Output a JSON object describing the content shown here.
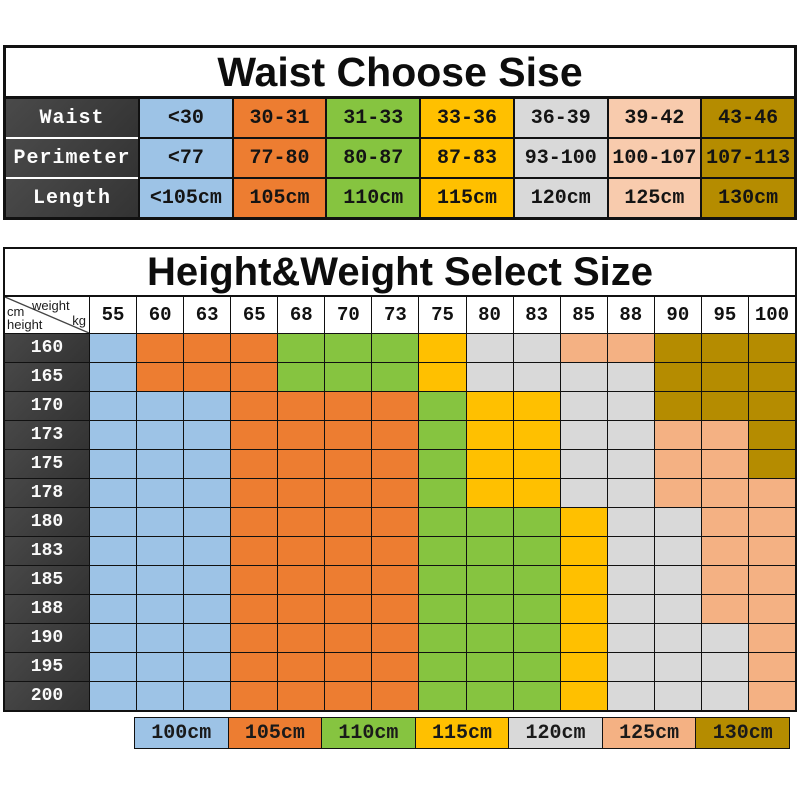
{
  "palette": {
    "blue": "#9DC3E6",
    "orange": "#ED7D31",
    "green": "#86C440",
    "yellow": "#FFC000",
    "gray": "#D9D9D9",
    "peach": "#F4B183",
    "peach_light": "#F8CBAD",
    "gold": "#B58C00",
    "dark_header": "#3D3D3D",
    "border": "#111111"
  },
  "waist_table": {
    "title": "Waist Choose Sise",
    "rows": [
      {
        "label": "Waist",
        "cells": [
          {
            "text": "<30",
            "color": "blue"
          },
          {
            "text": "30-31",
            "color": "orange"
          },
          {
            "text": "31-33",
            "color": "green"
          },
          {
            "text": "33-36",
            "color": "yellow"
          },
          {
            "text": "36-39",
            "color": "gray"
          },
          {
            "text": "39-42",
            "color": "peach_light"
          },
          {
            "text": "43-46",
            "color": "gold"
          }
        ]
      },
      {
        "label": "Perimeter",
        "cells": [
          {
            "text": "<77",
            "color": "blue"
          },
          {
            "text": "77-80",
            "color": "orange"
          },
          {
            "text": "80-87",
            "color": "green"
          },
          {
            "text": "87-83",
            "color": "yellow"
          },
          {
            "text": "93-100",
            "color": "gray"
          },
          {
            "text": "100-107",
            "color": "peach_light"
          },
          {
            "text": "107-113",
            "color": "gold"
          }
        ]
      },
      {
        "label": "Length",
        "cells": [
          {
            "text": "<105cm",
            "color": "blue"
          },
          {
            "text": "105cm",
            "color": "orange"
          },
          {
            "text": "110cm",
            "color": "green"
          },
          {
            "text": "115cm",
            "color": "yellow"
          },
          {
            "text": "120cm",
            "color": "gray"
          },
          {
            "text": "125cm",
            "color": "peach_light"
          },
          {
            "text": "130cm",
            "color": "gold"
          }
        ]
      }
    ]
  },
  "hw_table": {
    "title": "Height&Weight Select Size",
    "corner": {
      "top_label": "weight",
      "top_unit": "kg",
      "left_unit": "cm",
      "left_label": "height"
    },
    "weights": [
      "55",
      "60",
      "63",
      "65",
      "68",
      "70",
      "73",
      "75",
      "80",
      "83",
      "85",
      "88",
      "90",
      "95",
      "100"
    ],
    "heights": [
      "160",
      "165",
      "170",
      "173",
      "175",
      "178",
      "180",
      "183",
      "185",
      "188",
      "190",
      "195",
      "200"
    ],
    "code_map": {
      "B": "blue",
      "O": "orange",
      "G": "green",
      "Y": "yellow",
      "S": "gray",
      "P": "peach",
      "D": "gold"
    },
    "grid": [
      [
        "B",
        "O",
        "O",
        "O",
        "G",
        "G",
        "G",
        "Y",
        "S",
        "S",
        "P",
        "P",
        "D",
        "D",
        "D"
      ],
      [
        "B",
        "O",
        "O",
        "O",
        "G",
        "G",
        "G",
        "Y",
        "S",
        "S",
        "S",
        "S",
        "D",
        "D",
        "D"
      ],
      [
        "B",
        "B",
        "B",
        "O",
        "O",
        "O",
        "O",
        "G",
        "Y",
        "Y",
        "S",
        "S",
        "D",
        "D",
        "D"
      ],
      [
        "B",
        "B",
        "B",
        "O",
        "O",
        "O",
        "O",
        "G",
        "Y",
        "Y",
        "S",
        "S",
        "P",
        "P",
        "D"
      ],
      [
        "B",
        "B",
        "B",
        "O",
        "O",
        "O",
        "O",
        "G",
        "Y",
        "Y",
        "S",
        "S",
        "P",
        "P",
        "D"
      ],
      [
        "B",
        "B",
        "B",
        "O",
        "O",
        "O",
        "O",
        "G",
        "Y",
        "Y",
        "S",
        "S",
        "P",
        "P",
        "P"
      ],
      [
        "B",
        "B",
        "B",
        "O",
        "O",
        "O",
        "O",
        "G",
        "G",
        "G",
        "Y",
        "S",
        "S",
        "P",
        "P"
      ],
      [
        "B",
        "B",
        "B",
        "O",
        "O",
        "O",
        "O",
        "G",
        "G",
        "G",
        "Y",
        "S",
        "S",
        "P",
        "P"
      ],
      [
        "B",
        "B",
        "B",
        "O",
        "O",
        "O",
        "O",
        "G",
        "G",
        "G",
        "Y",
        "S",
        "S",
        "P",
        "P"
      ],
      [
        "B",
        "B",
        "B",
        "O",
        "O",
        "O",
        "O",
        "G",
        "G",
        "G",
        "Y",
        "S",
        "S",
        "P",
        "P"
      ],
      [
        "B",
        "B",
        "B",
        "O",
        "O",
        "O",
        "O",
        "G",
        "G",
        "G",
        "Y",
        "S",
        "S",
        "S",
        "P"
      ],
      [
        "B",
        "B",
        "B",
        "O",
        "O",
        "O",
        "O",
        "G",
        "G",
        "G",
        "Y",
        "S",
        "S",
        "S",
        "P"
      ],
      [
        "B",
        "B",
        "B",
        "O",
        "O",
        "O",
        "O",
        "G",
        "G",
        "G",
        "Y",
        "S",
        "S",
        "S",
        "P"
      ]
    ]
  },
  "legend": [
    {
      "label": "100cm",
      "color": "blue"
    },
    {
      "label": "105cm",
      "color": "orange"
    },
    {
      "label": "110cm",
      "color": "green"
    },
    {
      "label": "115cm",
      "color": "yellow"
    },
    {
      "label": "120cm",
      "color": "gray"
    },
    {
      "label": "125cm",
      "color": "peach"
    },
    {
      "label": "130cm",
      "color": "gold"
    }
  ],
  "chart_data": [
    {
      "type": "table",
      "title": "Waist Choose Sise",
      "row_headers": [
        "Waist",
        "Perimeter",
        "Length"
      ],
      "rows": [
        [
          "<30",
          "30-31",
          "31-33",
          "33-36",
          "36-39",
          "39-42",
          "43-46"
        ],
        [
          "<77",
          "77-80",
          "80-87",
          "87-83",
          "93-100",
          "100-107",
          "107-113"
        ],
        [
          "<105cm",
          "105cm",
          "110cm",
          "115cm",
          "120cm",
          "125cm",
          "130cm"
        ]
      ]
    },
    {
      "type": "heatmap",
      "title": "Height&Weight Select Size",
      "xlabel": "weight kg",
      "ylabel": "cm height",
      "x": [
        55,
        60,
        63,
        65,
        68,
        70,
        73,
        75,
        80,
        83,
        85,
        88,
        90,
        95,
        100
      ],
      "y": [
        160,
        165,
        170,
        173,
        175,
        178,
        180,
        183,
        185,
        188,
        190,
        195,
        200
      ],
      "legend_position": "bottom",
      "legend": [
        "100cm",
        "105cm",
        "110cm",
        "115cm",
        "120cm",
        "125cm",
        "130cm"
      ],
      "values_size_cm": [
        [
          100,
          105,
          105,
          105,
          110,
          110,
          110,
          115,
          120,
          120,
          125,
          125,
          130,
          130,
          130
        ],
        [
          100,
          105,
          105,
          105,
          110,
          110,
          110,
          115,
          120,
          120,
          120,
          120,
          130,
          130,
          130
        ],
        [
          100,
          100,
          100,
          105,
          105,
          105,
          105,
          110,
          115,
          115,
          120,
          120,
          130,
          130,
          130
        ],
        [
          100,
          100,
          100,
          105,
          105,
          105,
          105,
          110,
          115,
          115,
          120,
          120,
          125,
          125,
          130
        ],
        [
          100,
          100,
          100,
          105,
          105,
          105,
          105,
          110,
          115,
          115,
          120,
          120,
          125,
          125,
          130
        ],
        [
          100,
          100,
          100,
          105,
          105,
          105,
          105,
          110,
          115,
          115,
          120,
          120,
          125,
          125,
          125
        ],
        [
          100,
          100,
          100,
          105,
          105,
          105,
          105,
          110,
          110,
          110,
          115,
          120,
          120,
          125,
          125
        ],
        [
          100,
          100,
          100,
          105,
          105,
          105,
          105,
          110,
          110,
          110,
          115,
          120,
          120,
          125,
          125
        ],
        [
          100,
          100,
          100,
          105,
          105,
          105,
          105,
          110,
          110,
          110,
          115,
          120,
          120,
          125,
          125
        ],
        [
          100,
          100,
          100,
          105,
          105,
          105,
          105,
          110,
          110,
          110,
          115,
          120,
          120,
          125,
          125
        ],
        [
          100,
          100,
          100,
          105,
          105,
          105,
          105,
          110,
          110,
          110,
          115,
          120,
          120,
          120,
          125
        ],
        [
          100,
          100,
          100,
          105,
          105,
          105,
          105,
          110,
          110,
          110,
          115,
          120,
          120,
          120,
          125
        ],
        [
          100,
          100,
          100,
          105,
          105,
          105,
          105,
          110,
          110,
          110,
          115,
          120,
          120,
          120,
          125
        ]
      ]
    }
  ]
}
